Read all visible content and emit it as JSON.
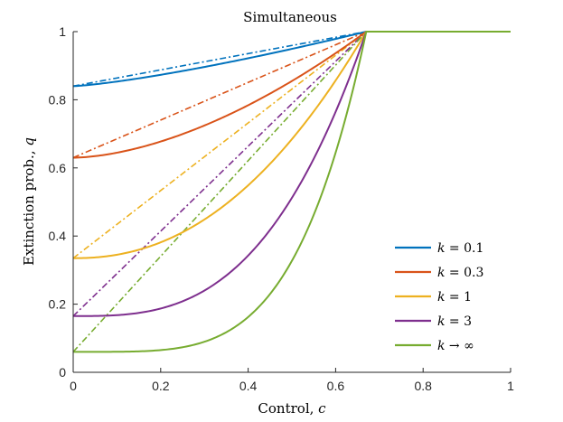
{
  "chart_data": {
    "type": "line",
    "title": "Simultaneous",
    "xlabel": "Control, c",
    "xlabel_text": "Control, ",
    "xlabel_var": "c",
    "ylabel": "Extinction prob., q",
    "ylabel_text": "Extinction prob., ",
    "ylabel_var": "q",
    "xlim": [
      0,
      1
    ],
    "ylim": [
      0,
      1
    ],
    "xticks": [
      0,
      0.2,
      0.4,
      0.6,
      0.8,
      1
    ],
    "xtick_labels": [
      "0",
      "0.2",
      "0.4",
      "0.6",
      "0.8",
      "1"
    ],
    "yticks": [
      0,
      0.2,
      0.4,
      0.6,
      0.8,
      1
    ],
    "ytick_labels": [
      "0",
      "0.2",
      "0.4",
      "0.6",
      "0.8",
      "1"
    ],
    "c_star": 0.67,
    "legend_position": "bottom-right",
    "series": [
      {
        "name": "k = 0.1",
        "label_var": "k",
        "label_rest": " = 0.1",
        "color": "#0072BD",
        "q0": 0.84,
        "exponent": 1.3
      },
      {
        "name": "k = 0.3",
        "label_var": "k",
        "label_rest": " = 0.3",
        "color": "#D95319",
        "q0": 0.63,
        "exponent": 1.7
      },
      {
        "name": "k = 1",
        "label_var": "k",
        "label_rest": " = 1",
        "color": "#EDB120",
        "q0": 0.335,
        "exponent": 2.2
      },
      {
        "name": "k = 3",
        "label_var": "k",
        "label_rest": " = 3",
        "color": "#7E2F8E",
        "q0": 0.165,
        "exponent": 3.0
      },
      {
        "name": "k → ∞",
        "label_var": "k",
        "label_rest": " → ∞",
        "color": "#77AC30",
        "q0": 0.06,
        "exponent": 4.3
      }
    ],
    "line_styles": {
      "solid": "model",
      "dashdot": "linear reference"
    }
  }
}
